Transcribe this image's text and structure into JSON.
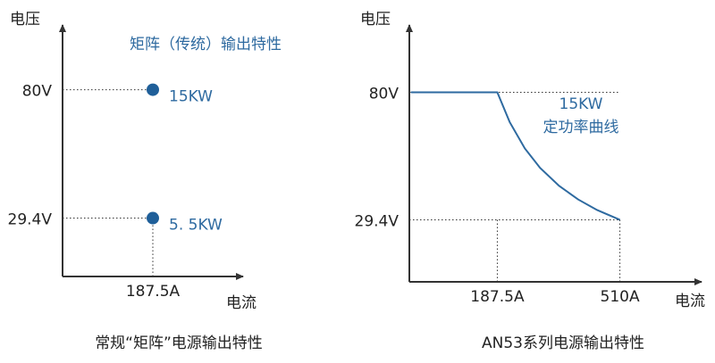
{
  "chart_data": [
    {
      "type": "scatter",
      "title": "常规“矩阵”电源输出特性",
      "annotations": [
        "矩阵（传统）输出特性"
      ],
      "xlabel": "电流",
      "ylabel": "电压",
      "x": [
        187.5,
        187.5
      ],
      "values": [
        80,
        29.4
      ],
      "point_labels": [
        "15KW",
        "5. 5KW"
      ],
      "color": "#1f5f99",
      "xlim": [
        0,
        375
      ],
      "ylim": [
        6.4,
        105.5
      ],
      "xticks": [
        {
          "value": 187.5,
          "label": "187.5A"
        }
      ],
      "yticks": [
        {
          "value": 80,
          "label": "80V"
        },
        {
          "value": 29.4,
          "label": "29.4V"
        }
      ]
    },
    {
      "type": "line",
      "title": "AN53系列电源输出特性",
      "annotations": [
        "15KW",
        "定功率曲线"
      ],
      "xlabel": "电流",
      "ylabel": "电压",
      "x": [
        -40,
        187.5,
        220,
        260,
        300,
        350,
        400,
        450,
        510
      ],
      "values": [
        80,
        80,
        68.2,
        57.7,
        50,
        42.9,
        37.5,
        33.3,
        29.4
      ],
      "color": "#2e6aa0",
      "xlim": [
        -44,
        725
      ],
      "ylim": [
        4.8,
        106.7
      ],
      "xticks": [
        {
          "value": 187.5,
          "label": "187.5A"
        },
        {
          "value": 510,
          "label": "510A"
        }
      ],
      "yticks": [
        {
          "value": 80,
          "label": "80V"
        },
        {
          "value": 29.4,
          "label": "29.4V"
        }
      ]
    }
  ]
}
